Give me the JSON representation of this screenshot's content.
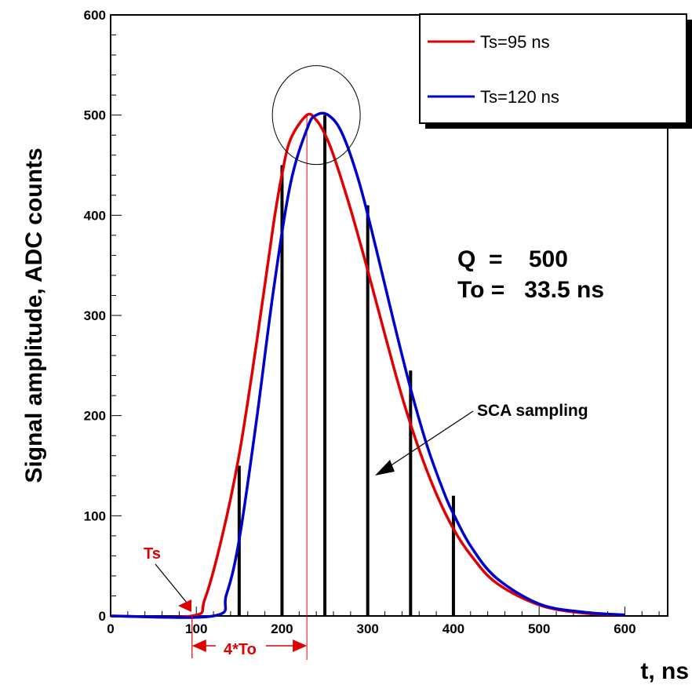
{
  "chart_data": {
    "type": "line",
    "xlabel": "t, ns",
    "ylabel": "Signal amplitude, ADC counts",
    "xlim": [
      0,
      650
    ],
    "ylim": [
      0,
      600
    ],
    "xticks": [
      "0",
      "100",
      "200",
      "300",
      "400",
      "500",
      "600"
    ],
    "yticks": [
      "0",
      "100",
      "200",
      "300",
      "400",
      "500",
      "600"
    ],
    "grid": false,
    "legend_position": "top-right",
    "series": [
      {
        "name": "Ts=95 ns",
        "color": "#e00000",
        "x": [
          0,
          95,
          110,
          130,
          150,
          170,
          190,
          200,
          210,
          229,
          240,
          250,
          260,
          280,
          300,
          320,
          340,
          360,
          380,
          400,
          420,
          450,
          500,
          550,
          600
        ],
        "y": [
          0,
          0,
          17,
          79,
          161,
          271,
          391,
          441,
          476,
          500,
          495,
          481,
          460,
          406,
          345,
          281,
          219,
          166,
          122,
          87,
          61,
          33,
          11,
          3,
          1
        ]
      },
      {
        "name": "Ts=120 ns",
        "color": "#0000cc",
        "x": [
          0,
          120,
          135,
          150,
          170,
          190,
          210,
          230,
          240,
          254,
          270,
          290,
          310,
          330,
          350,
          370,
          390,
          400,
          420,
          450,
          500,
          550,
          600
        ],
        "y": [
          0,
          0,
          21,
          76,
          194,
          325,
          432,
          488,
          500,
          500,
          482,
          433,
          366,
          295,
          227,
          168,
          121,
          102,
          70,
          38,
          12,
          4,
          1
        ]
      }
    ],
    "sampling_lines": [
      {
        "x": 150,
        "y": 150
      },
      {
        "x": 200,
        "y": 450
      },
      {
        "x": 250,
        "y": 500
      },
      {
        "x": 300,
        "y": 410
      },
      {
        "x": 350,
        "y": 245
      },
      {
        "x": 400,
        "y": 120
      }
    ],
    "thin_marker_x": 229,
    "highlight_circle": {
      "x": 240,
      "y": 500
    },
    "span_arrow": {
      "from": 95,
      "to": 229
    }
  },
  "annotations": {
    "q_line": "Q  =    500",
    "to_line": "To =   33.5 ns",
    "sca_label": "SCA sampling",
    "ts_label": "Ts",
    "span_label": "4*To"
  }
}
